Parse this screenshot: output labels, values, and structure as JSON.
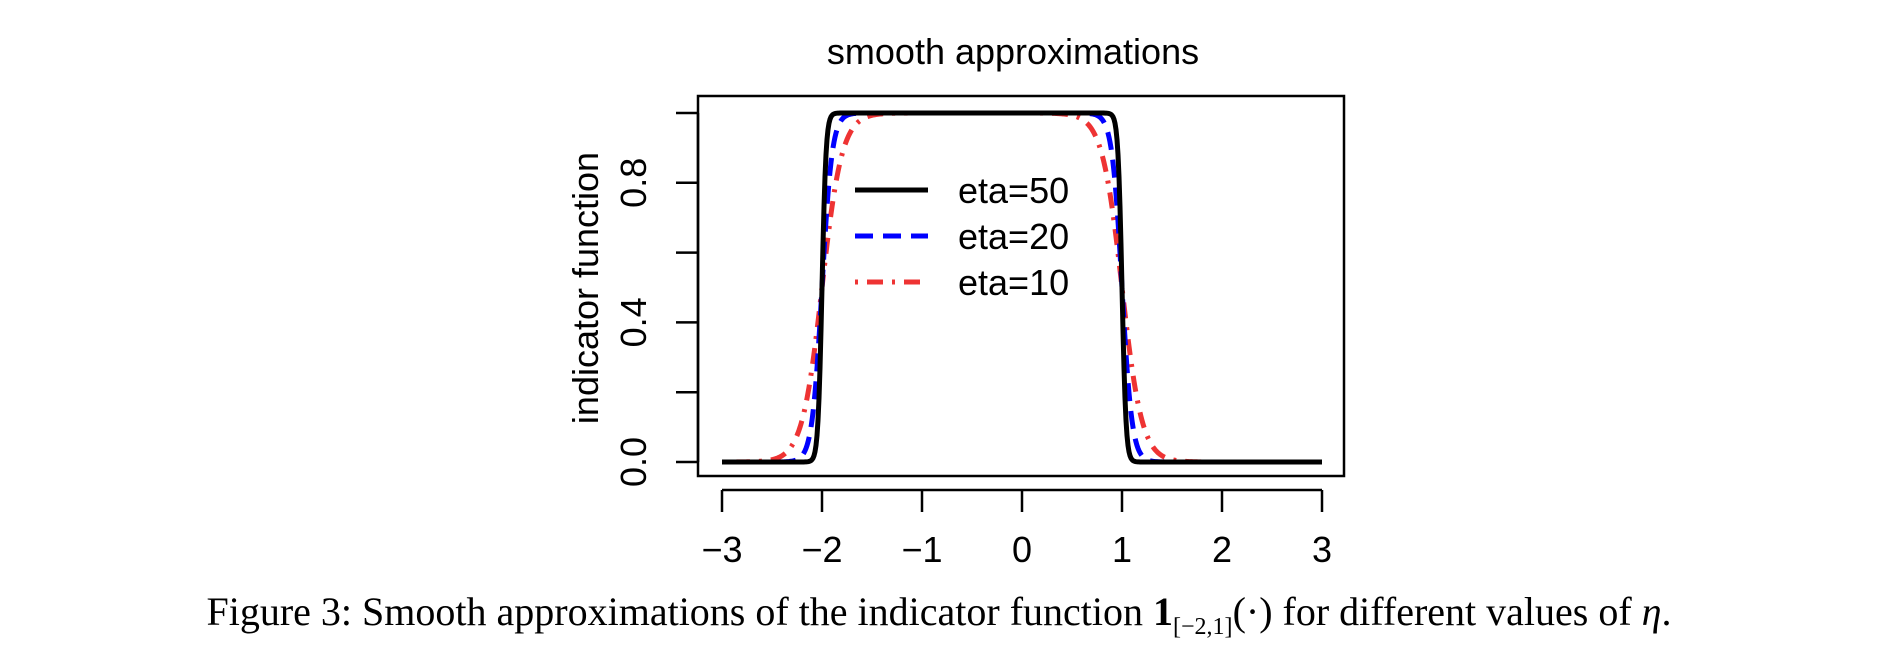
{
  "chart_data": {
    "type": "line",
    "title": "smooth approximations",
    "xlabel": "",
    "ylabel": "indicator function",
    "xlim": [
      -3,
      3
    ],
    "ylim": [
      0,
      1
    ],
    "x_ticks": [
      -3,
      -2,
      -1,
      0,
      1,
      2,
      3
    ],
    "x_tick_labels": [
      "−3",
      "−2",
      "−1",
      "0",
      "1",
      "2",
      "3"
    ],
    "y_ticks": [
      0,
      0.2,
      0.4,
      0.6,
      0.8,
      1.0
    ],
    "y_tick_labels": [
      "0.0",
      "",
      "0.4",
      "",
      "0.8",
      ""
    ],
    "grid": false,
    "legend_position": "center-left inside plot",
    "indicator_interval": [
      -2,
      1
    ],
    "series": [
      {
        "name": "eta=50",
        "eta": 50,
        "color": "#000000",
        "style": "solid"
      },
      {
        "name": "eta=20",
        "eta": 20,
        "color": "#0000ff",
        "style": "dashed"
      },
      {
        "name": "eta=10",
        "eta": 10,
        "color": "#ee3333",
        "style": "dotdash"
      }
    ]
  },
  "caption": {
    "prefix": "Figure 3: Smooth approximations of the indicator function ",
    "bold_symbol": "1",
    "subscript": "[−2,1]",
    "after_subscript": "(·) for different values of ",
    "eta_symbol": "η",
    "suffix": "."
  }
}
